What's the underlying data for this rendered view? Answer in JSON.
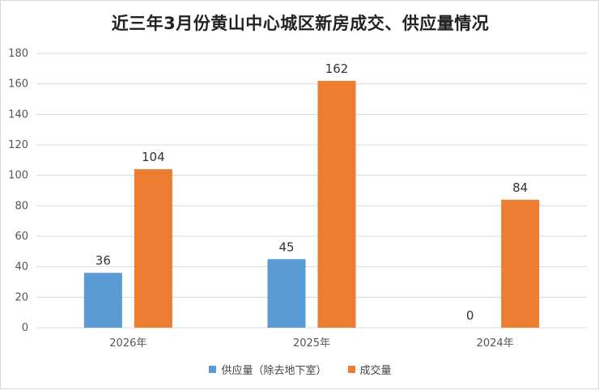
{
  "chart_data": {
    "type": "bar",
    "title": "近三年3月份黄山中心城区新房成交、供应量情况",
    "categories": [
      "2026年",
      "2025年",
      "2024年"
    ],
    "series": [
      {
        "name": "供应量（除去地下室）",
        "values": [
          36,
          45,
          0
        ],
        "color": "#5b9bd5"
      },
      {
        "name": "成交量",
        "values": [
          104,
          162,
          84
        ],
        "color": "#ed7d31"
      }
    ],
    "ylim": [
      0,
      180
    ],
    "yticks": [
      0,
      20,
      40,
      60,
      80,
      100,
      120,
      140,
      160,
      180
    ],
    "grid": true,
    "legend_position": "bottom",
    "data_labels": true
  }
}
